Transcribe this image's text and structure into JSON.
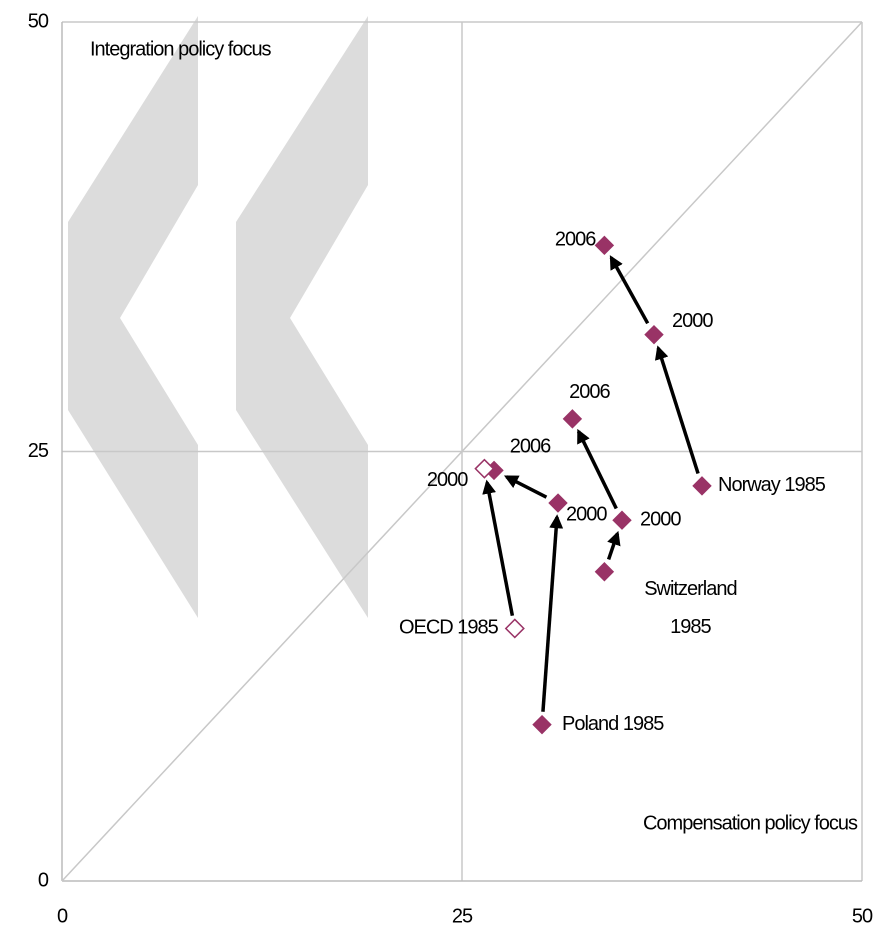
{
  "chart_data": {
    "type": "scatter",
    "annotations": [
      "Integration policy focus",
      "Compensation policy focus"
    ],
    "xlim": [
      0,
      50
    ],
    "ylim": [
      0,
      50
    ],
    "xticks": [
      0,
      25,
      50
    ],
    "yticks": [
      0,
      25,
      50
    ],
    "grid": true,
    "diagonal": true,
    "color": "#993366",
    "series": [
      {
        "name": "Norway",
        "marker": "diamond",
        "x": [
          40.0,
          37.0,
          33.9
        ],
        "y": [
          23.0,
          31.8,
          37.0
        ],
        "labels": [
          "Norway 1985",
          "2000",
          "2006"
        ]
      },
      {
        "name": "Switzerland",
        "marker": "diamond",
        "x": [
          33.9,
          35.0,
          31.9
        ],
        "y": [
          18.0,
          21.0,
          26.9
        ],
        "labels": [
          "Switzerland 1985",
          "2000",
          "2006"
        ]
      },
      {
        "name": "Poland",
        "marker": "diamond",
        "x": [
          30.0,
          31.0,
          27.0
        ],
        "y": [
          9.1,
          22.0,
          23.9
        ],
        "labels": [
          "Poland 1985",
          "2000",
          "2006"
        ]
      },
      {
        "name": "OECD",
        "marker": "open-diamond",
        "x": [
          28.3,
          26.4
        ],
        "y": [
          14.7,
          24.0
        ],
        "labels": [
          "OECD 1985",
          "2000"
        ]
      }
    ]
  }
}
